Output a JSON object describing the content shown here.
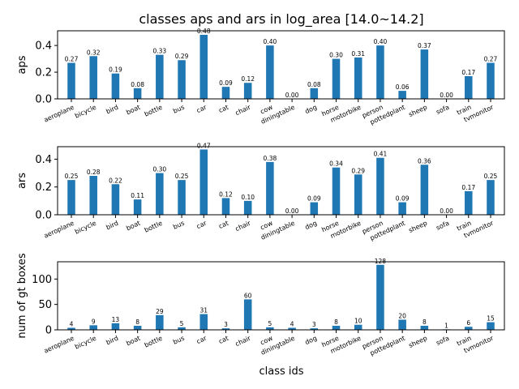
{
  "chart_data": {
    "type": "bar",
    "title": "classes aps and ars in log_area [14.0~14.2]",
    "xlabel": "class ids",
    "bar_color": "#1f77b4",
    "categories": [
      "aeroplane",
      "bicycle",
      "bird",
      "boat",
      "bottle",
      "bus",
      "car",
      "cat",
      "chair",
      "cow",
      "diningtable",
      "dog",
      "horse",
      "motorbike",
      "person",
      "pottedplant",
      "sheep",
      "sofa",
      "train",
      "tvmonitor"
    ],
    "subplots": [
      {
        "ylabel": "aps",
        "ylim": [
          0,
          0.51
        ],
        "yticks": [
          0.0,
          0.2,
          0.4
        ],
        "ytick_labels": [
          "0.0",
          "0.2",
          "0.4"
        ],
        "values": [
          0.27,
          0.32,
          0.19,
          0.08,
          0.33,
          0.29,
          0.48,
          0.09,
          0.12,
          0.4,
          0.0,
          0.08,
          0.3,
          0.31,
          0.4,
          0.06,
          0.37,
          0.0,
          0.17,
          0.27
        ],
        "value_labels": [
          "0.27",
          "0.32",
          "0.19",
          "0.08",
          "0.33",
          "0.29",
          "0.48",
          "0.09",
          "0.12",
          "0.40",
          "0.00",
          "0.08",
          "0.30",
          "0.31",
          "0.40",
          "0.06",
          "0.37",
          "0.00",
          "0.17",
          "0.27"
        ]
      },
      {
        "ylabel": "ars",
        "ylim": [
          0,
          0.49
        ],
        "yticks": [
          0.0,
          0.2,
          0.4
        ],
        "ytick_labels": [
          "0.0",
          "0.2",
          "0.4"
        ],
        "values": [
          0.25,
          0.28,
          0.22,
          0.11,
          0.3,
          0.25,
          0.47,
          0.12,
          0.1,
          0.38,
          0.0,
          0.09,
          0.34,
          0.29,
          0.41,
          0.09,
          0.36,
          0.0,
          0.17,
          0.25
        ],
        "value_labels": [
          "0.25",
          "0.28",
          "0.22",
          "0.11",
          "0.30",
          "0.25",
          "0.47",
          "0.12",
          "0.10",
          "0.38",
          "0.00",
          "0.09",
          "0.34",
          "0.29",
          "0.41",
          "0.09",
          "0.36",
          "0.00",
          "0.17",
          "0.25"
        ]
      },
      {
        "ylabel": "num of gt boxes",
        "ylim": [
          0,
          134
        ],
        "yticks": [
          0,
          50,
          100
        ],
        "ytick_labels": [
          "0",
          "50",
          "100"
        ],
        "values": [
          4,
          9,
          13,
          8,
          29,
          5,
          31,
          3,
          60,
          5,
          4,
          3,
          8,
          10,
          128,
          20,
          8,
          1,
          6,
          15
        ],
        "value_labels": [
          "4",
          "9",
          "13",
          "8",
          "29",
          "5",
          "31",
          "3",
          "60",
          "5",
          "4",
          "3",
          "8",
          "10",
          "128",
          "20",
          "8",
          "1",
          "6",
          "15"
        ]
      }
    ]
  }
}
